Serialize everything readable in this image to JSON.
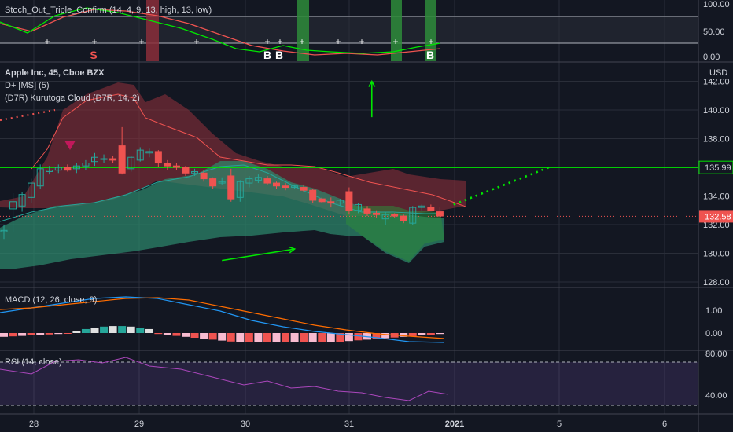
{
  "header": {
    "symbol_line": "Apple Inc, 45, Cboe BZX",
    "indicator_1": "D+ [MS] (5)",
    "indicator_2": "(D7R) Kurutoga Cloud (D7R, 14, 2)"
  },
  "panes": {
    "stoch": {
      "title": "Stoch_Out_Triple_Confirm (14, 4, 9, 13, high, 13, low)",
      "ticks": [
        "100.00",
        "50.00",
        "0.00"
      ],
      "signals": [
        {
          "label": "S",
          "color": "#ef5350"
        },
        {
          "label": "B",
          "color": "#ffffff"
        },
        {
          "label": "B",
          "color": "#ffffff"
        },
        {
          "label": "B",
          "color": "#ffffff"
        }
      ]
    },
    "price": {
      "currency": "USD",
      "ticks": [
        "142.00",
        "140.00",
        "138.00",
        "136.00",
        "134.00",
        "132.00",
        "130.00",
        "128.00"
      ],
      "level_label": "135.99",
      "last_price_label": "132.58"
    },
    "macd": {
      "title": "MACD (12, 26, close, 9)",
      "ticks": [
        "1.00",
        "0.00"
      ]
    },
    "rsi": {
      "title": "RSI (14, close)",
      "ticks": [
        "80.00",
        "40.00"
      ]
    }
  },
  "x_axis": {
    "labels": [
      "28",
      "29",
      "30",
      "31",
      "2021",
      "5",
      "6"
    ]
  },
  "colors": {
    "background": "#131722",
    "up": "#26a69a",
    "down": "#ef5350",
    "level_line": "#00e600",
    "cloud_bull": "#2e8b6e",
    "cloud_bear": "#8b2e3a",
    "macd_line": "#2196f3",
    "signal_line": "#ff6d00",
    "rsi_band": "#7e57c2"
  },
  "chart_data": {
    "type": "candlestick",
    "title": "Apple Inc, 45, Cboe BZX",
    "ylabel": "USD",
    "ylim": [
      127.5,
      142.8
    ],
    "level": 135.99,
    "last_price": 132.58,
    "candles": [
      [
        131.5,
        132.0,
        131.0,
        131.6
      ],
      [
        133.1,
        134.2,
        131.5,
        133.6
      ],
      [
        133.3,
        134.3,
        132.9,
        134.1
      ],
      [
        133.9,
        135.2,
        133.5,
        134.9
      ],
      [
        134.7,
        136.2,
        134.5,
        135.9
      ],
      [
        135.7,
        136.1,
        135.5,
        135.8
      ],
      [
        135.8,
        136.2,
        135.6,
        136.0
      ],
      [
        136.0,
        136.2,
        135.7,
        135.8
      ],
      [
        135.9,
        136.3,
        135.6,
        136.1
      ],
      [
        136.1,
        136.5,
        135.8,
        136.3
      ],
      [
        136.4,
        137.0,
        136.1,
        136.7
      ],
      [
        136.6,
        136.9,
        136.3,
        136.6
      ],
      [
        136.6,
        136.8,
        136.3,
        136.5
      ],
      [
        137.5,
        138.8,
        135.5,
        135.6
      ],
      [
        135.9,
        136.8,
        135.7,
        136.7
      ],
      [
        136.5,
        137.4,
        136.4,
        137.2
      ],
      [
        137.0,
        137.3,
        136.7,
        137.1
      ],
      [
        137.1,
        137.2,
        136.0,
        136.3
      ],
      [
        136.3,
        136.5,
        135.8,
        136.1
      ],
      [
        136.1,
        136.3,
        135.8,
        136.0
      ],
      [
        136.0,
        136.1,
        135.4,
        135.6
      ],
      [
        135.6,
        135.9,
        135.4,
        135.7
      ],
      [
        135.6,
        135.8,
        135.0,
        135.2
      ],
      [
        135.2,
        135.3,
        134.5,
        134.7
      ],
      [
        134.9,
        135.3,
        134.8,
        135.0
      ],
      [
        135.4,
        135.9,
        133.6,
        133.8
      ],
      [
        133.9,
        135.1,
        133.6,
        135.0
      ],
      [
        134.9,
        135.4,
        134.6,
        135.2
      ],
      [
        135.1,
        135.5,
        134.9,
        135.3
      ],
      [
        135.2,
        135.4,
        134.8,
        134.9
      ],
      [
        134.9,
        135.0,
        134.5,
        134.7
      ],
      [
        134.7,
        134.9,
        134.4,
        134.6
      ],
      [
        134.6,
        134.8,
        134.5,
        134.7
      ],
      [
        134.6,
        134.8,
        134.3,
        134.4
      ],
      [
        134.4,
        134.5,
        133.5,
        133.7
      ],
      [
        133.8,
        133.9,
        133.5,
        133.6
      ],
      [
        133.6,
        133.9,
        133.2,
        133.5
      ],
      [
        133.5,
        133.8,
        133.3,
        133.7
      ],
      [
        134.3,
        134.6,
        132.7,
        133.0
      ],
      [
        133.0,
        133.5,
        132.8,
        133.4
      ],
      [
        133.1,
        133.3,
        132.6,
        132.8
      ],
      [
        132.8,
        133.0,
        132.5,
        132.7
      ],
      [
        132.4,
        132.9,
        132.0,
        132.7
      ],
      [
        132.7,
        132.8,
        132.5,
        132.6
      ],
      [
        132.6,
        132.7,
        132.1,
        132.3
      ],
      [
        132.1,
        133.3,
        132.0,
        133.2
      ],
      [
        133.2,
        133.4,
        133.0,
        133.3
      ],
      [
        133.2,
        133.4,
        133.0,
        133.0
      ],
      [
        132.9,
        133.2,
        132.6,
        132.6
      ]
    ],
    "projection_line": [
      [
        49.5,
        133.4
      ],
      [
        60,
        136.0
      ]
    ],
    "arrows": [
      {
        "from": [
          24,
          129.5
        ],
        "to": [
          32,
          130.3
        ],
        "color": "#00e600"
      },
      {
        "from": [
          40.5,
          139.5
        ],
        "to": [
          40.5,
          142.0
        ],
        "color": "#00e600"
      }
    ]
  }
}
